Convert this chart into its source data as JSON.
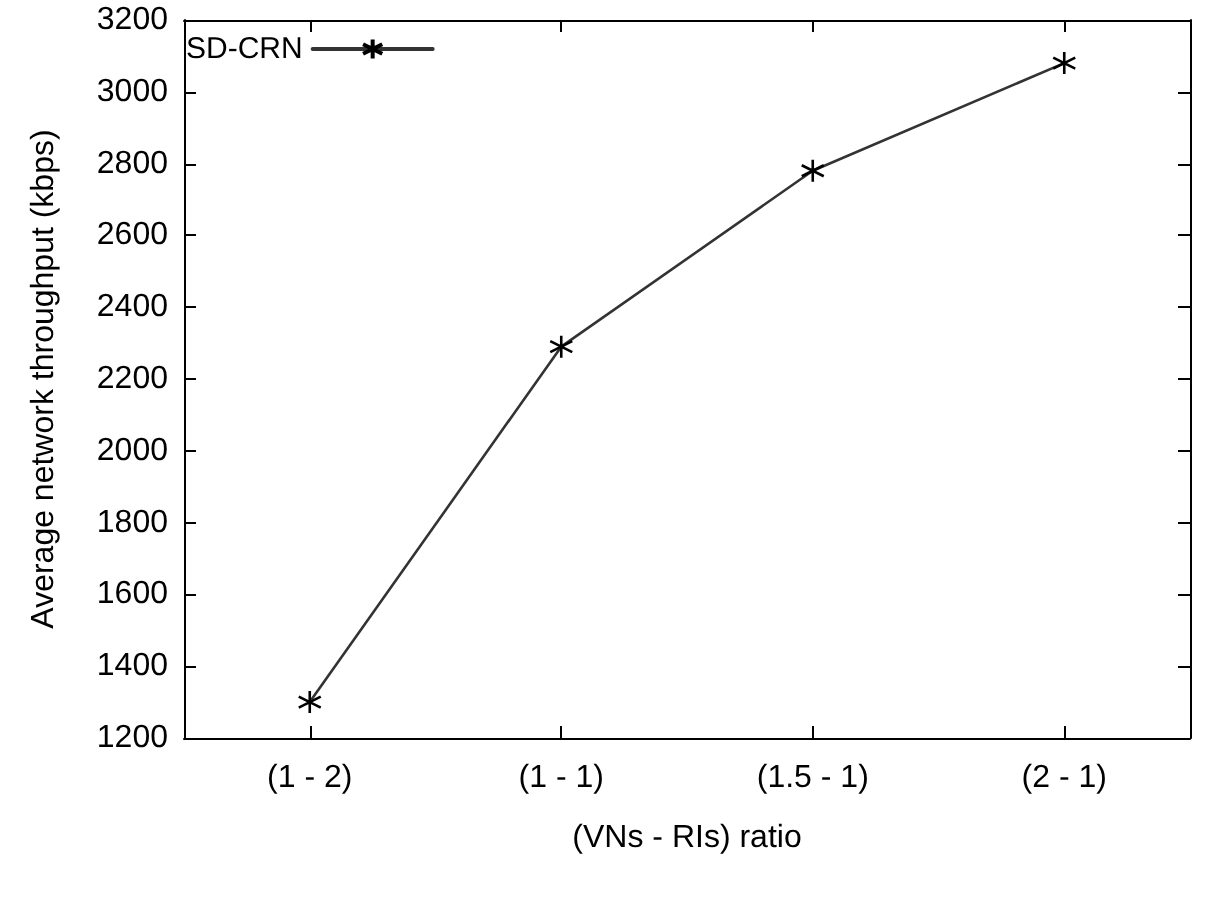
{
  "chart_data": {
    "type": "line",
    "xlabel": "(VNs - RIs) ratio",
    "ylabel": "Average network throughput (kbps)",
    "categories": [
      "(1 - 2)",
      "(1 - 1)",
      "(1.5 - 1)",
      "(2 - 1)"
    ],
    "series": [
      {
        "name": "SD-CRN",
        "color": "#333333",
        "values": [
          1300,
          2290,
          2780,
          3080
        ]
      }
    ],
    "ylim": [
      1200,
      3200
    ],
    "yticks": [
      1200,
      1400,
      1600,
      1800,
      2000,
      2200,
      2400,
      2600,
      2800,
      3000,
      3200
    ],
    "grid": false,
    "legend": "top left",
    "marker": "cross",
    "line_style": "solid"
  }
}
